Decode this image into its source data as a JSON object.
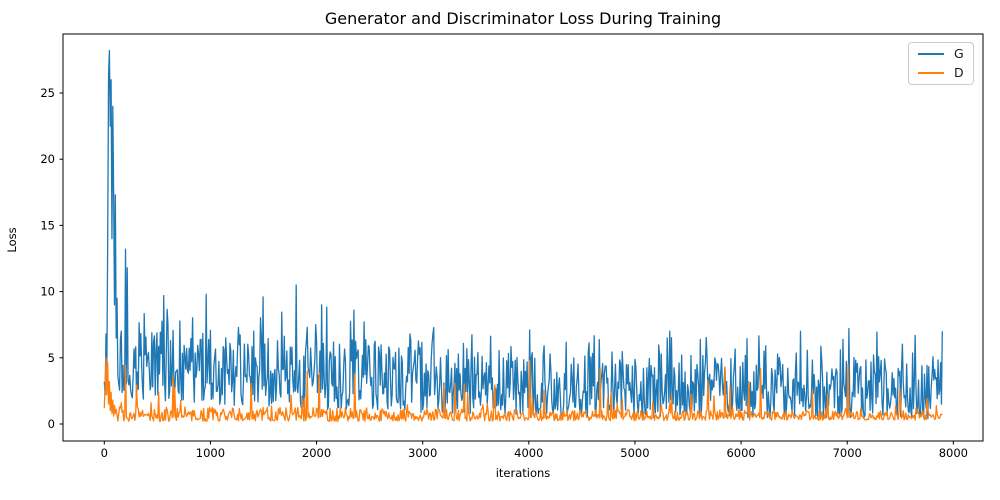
{
  "chart_data": {
    "type": "line",
    "title": "Generator and Discriminator Loss During Training",
    "xlabel": "iterations",
    "ylabel": "Loss",
    "xlim": [
      -389,
      8283
    ],
    "ylim": [
      -1.28,
      29.46
    ],
    "x_ticks": [
      0,
      1000,
      2000,
      3000,
      4000,
      5000,
      6000,
      7000,
      8000
    ],
    "y_ticks": [
      0,
      5,
      10,
      15,
      20,
      25
    ],
    "grid": false,
    "legend": {
      "position": "upper right",
      "entries": [
        "G",
        "D"
      ]
    },
    "iterations_range": [
      0,
      7900
    ],
    "sample_step": 8,
    "series": [
      {
        "name": "G",
        "color": "#1f77b4",
        "description": "Generator loss: spikes to ~28.2 within the first 100 iterations, brief ~17.5 and ~13.2 peaks by iteration 200, then a dense noisy band declining from roughly 1.7-7 (needles to ~9.8) down to roughly 0.4-4.8 (needles to ~7) by iteration 7900",
        "peak_value": 28.2,
        "seed": 20,
        "needle_prob": 0.1,
        "base_skew": 1.2,
        "needle_skew": 2.0,
        "head_step": 8,
        "head": [
          3.2,
          2.2,
          6.8,
          4.0,
          14.0,
          26.3,
          28.2,
          22.5,
          26.0,
          14.0,
          24.0,
          17.5,
          9.0,
          17.3,
          6.5,
          9.5
        ],
        "envelope": [
          [
            128,
            1.8,
            7.5,
            9.5
          ],
          [
            200,
            1.7,
            7.0,
            9.0
          ],
          [
            400,
            1.6,
            7.0,
            9.7
          ],
          [
            800,
            1.5,
            7.0,
            9.8
          ],
          [
            1200,
            1.4,
            6.8,
            9.7
          ],
          [
            1600,
            1.3,
            6.4,
            9.3
          ],
          [
            2000,
            1.1,
            6.3,
            9.0
          ],
          [
            2400,
            1.0,
            6.1,
            8.5
          ],
          [
            2800,
            0.9,
            5.8,
            7.8
          ],
          [
            3200,
            0.8,
            5.5,
            7.2
          ],
          [
            3800,
            0.7,
            5.3,
            7.0
          ],
          [
            4400,
            0.6,
            5.1,
            6.9
          ],
          [
            5200,
            0.5,
            5.0,
            6.8
          ],
          [
            6000,
            0.5,
            4.9,
            6.8
          ],
          [
            6800,
            0.4,
            4.8,
            7.0
          ],
          [
            7900,
            0.4,
            4.8,
            7.0
          ]
        ],
        "spikes": [
          [
            200,
            13.2
          ],
          [
            216,
            11.8
          ],
          [
            560,
            9.7
          ],
          [
            960,
            9.8
          ],
          [
            1496,
            9.6
          ],
          [
            1808,
            10.5
          ],
          [
            2048,
            9.0
          ],
          [
            2352,
            8.6
          ],
          [
            4008,
            7.1
          ],
          [
            5328,
            7.0
          ],
          [
            6560,
            7.0
          ],
          [
            7016,
            7.2
          ],
          [
            7896,
            7.0
          ]
        ]
      },
      {
        "name": "D",
        "color": "#ff7f0e",
        "description": "Discriminator loss: starts around 1-5, settles quickly into a dense noisy band of roughly 0.2-1.3 with scattered spikes between ~3 and ~4.8 throughout training",
        "peak_value": 5.0,
        "seed": 77,
        "needle_prob": 0.06,
        "base_skew": 1.3,
        "needle_skew": 2.2,
        "head_step": 8,
        "head": [
          1.2,
          3.0,
          5.0,
          2.2,
          4.6,
          1.5,
          3.2,
          1.0,
          2.4,
          0.8,
          1.8,
          0.6,
          1.4,
          0.8,
          1.1,
          0.7
        ],
        "envelope": [
          [
            128,
            0.2,
            1.6,
            3.4
          ],
          [
            300,
            0.2,
            1.4,
            3.2
          ],
          [
            700,
            0.2,
            1.3,
            3.0
          ],
          [
            1200,
            0.2,
            1.25,
            3.2
          ],
          [
            1800,
            0.2,
            1.25,
            3.6
          ],
          [
            2400,
            0.2,
            1.2,
            3.6
          ],
          [
            3000,
            0.22,
            1.15,
            3.0
          ],
          [
            3600,
            0.22,
            1.1,
            3.2
          ],
          [
            4200,
            0.25,
            1.1,
            3.2
          ],
          [
            5000,
            0.25,
            1.05,
            3.2
          ],
          [
            5800,
            0.28,
            1.05,
            3.4
          ],
          [
            6600,
            0.28,
            1.0,
            3.2
          ],
          [
            7300,
            0.3,
            1.0,
            3.1
          ],
          [
            7900,
            0.3,
            1.0,
            3.0
          ]
        ],
        "spikes": [
          [
            200,
            4.4
          ],
          [
            648,
            3.6
          ],
          [
            1912,
            4.0
          ],
          [
            2024,
            3.9
          ],
          [
            2360,
            3.8
          ],
          [
            3200,
            2.9
          ],
          [
            4008,
            4.8
          ],
          [
            4672,
            4.2
          ],
          [
            5848,
            4.3
          ],
          [
            6184,
            4.2
          ],
          [
            7008,
            4.5
          ]
        ]
      }
    ]
  }
}
